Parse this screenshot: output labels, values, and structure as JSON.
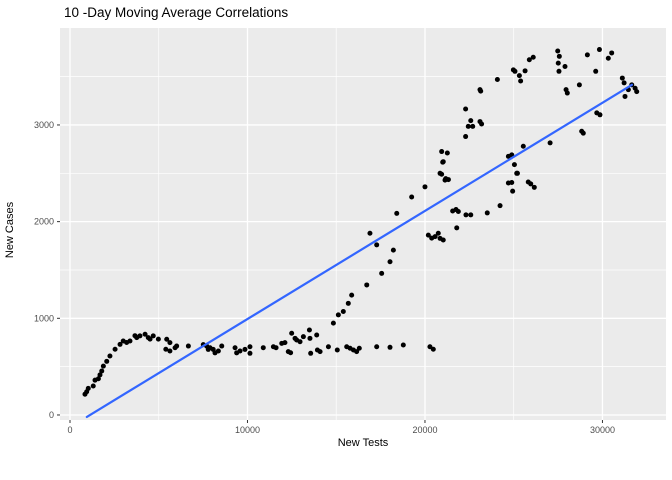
{
  "title": "10 -Day Moving Average Correlations",
  "chart_data": {
    "type": "scatter",
    "title": "10 -Day Moving Average Correlations",
    "xlabel": "New Tests",
    "ylabel": "New Cases",
    "xlim": [
      -563,
      33580
    ],
    "ylim": [
      -52,
      4003
    ],
    "x_ticks": [
      0,
      10000,
      20000,
      30000
    ],
    "x_minor_ticks": [
      5000,
      15000,
      25000
    ],
    "y_ticks": [
      0,
      1000,
      2000,
      3000
    ],
    "y_minor_ticks": [
      500,
      1500,
      2500,
      3500
    ],
    "grid": "on",
    "legend": "none",
    "panel_bg": "#EBEBEB",
    "grid_color": "#FFFFFF",
    "tick_color": "#333333",
    "tick_label_color": "#4D4D4D",
    "point_color": "#000000",
    "point_radius": 2.5,
    "trend_line": {
      "color": "#3366FF",
      "width": 2.2,
      "points": [
        [
          950,
          -20
        ],
        [
          31660,
          3415
        ]
      ]
    },
    "points": [
      [
        845,
        215
      ],
      [
        940,
        240
      ],
      [
        1030,
        275
      ],
      [
        1310,
        300
      ],
      [
        1410,
        360
      ],
      [
        1600,
        375
      ],
      [
        1690,
        415
      ],
      [
        1790,
        455
      ],
      [
        1880,
        505
      ],
      [
        2070,
        555
      ],
      [
        2250,
        610
      ],
      [
        2540,
        680
      ],
      [
        2820,
        730
      ],
      [
        3000,
        765
      ],
      [
        3190,
        750
      ],
      [
        3380,
        765
      ],
      [
        3660,
        820
      ],
      [
        3760,
        800
      ],
      [
        3940,
        818
      ],
      [
        4230,
        835
      ],
      [
        4410,
        800
      ],
      [
        4510,
        785
      ],
      [
        4690,
        818
      ],
      [
        4980,
        785
      ],
      [
        5400,
        680
      ],
      [
        5450,
        783
      ],
      [
        5630,
        748
      ],
      [
        5630,
        662
      ],
      [
        5920,
        695
      ],
      [
        6010,
        713
      ],
      [
        6670,
        713
      ],
      [
        7510,
        728
      ],
      [
        7700,
        713
      ],
      [
        7790,
        678
      ],
      [
        7890,
        695
      ],
      [
        8070,
        678
      ],
      [
        8170,
        643
      ],
      [
        8360,
        662
      ],
      [
        8550,
        713
      ],
      [
        9300,
        695
      ],
      [
        9390,
        643
      ],
      [
        9580,
        662
      ],
      [
        9860,
        678
      ],
      [
        10140,
        706
      ],
      [
        10140,
        638
      ],
      [
        10890,
        696
      ],
      [
        11460,
        706
      ],
      [
        11610,
        696
      ],
      [
        11930,
        741
      ],
      [
        12110,
        748
      ],
      [
        12300,
        655
      ],
      [
        12430,
        644
      ],
      [
        12490,
        845
      ],
      [
        12680,
        793
      ],
      [
        12770,
        776
      ],
      [
        12960,
        758
      ],
      [
        13150,
        810
      ],
      [
        13490,
        879
      ],
      [
        13520,
        793
      ],
      [
        13560,
        638
      ],
      [
        13900,
        827
      ],
      [
        13940,
        672
      ],
      [
        14090,
        655
      ],
      [
        14560,
        706
      ],
      [
        15060,
        672
      ],
      [
        15590,
        706
      ],
      [
        15780,
        690
      ],
      [
        15970,
        672
      ],
      [
        16150,
        655
      ],
      [
        16300,
        690
      ],
      [
        17280,
        706
      ],
      [
        18030,
        700
      ],
      [
        18780,
        724
      ],
      [
        20280,
        706
      ],
      [
        20470,
        680
      ],
      [
        14840,
        950
      ],
      [
        15120,
        1035
      ],
      [
        15400,
        1070
      ],
      [
        15680,
        1155
      ],
      [
        15870,
        1240
      ],
      [
        16720,
        1345
      ],
      [
        17560,
        1465
      ],
      [
        18030,
        1585
      ],
      [
        18220,
        1705
      ],
      [
        17280,
        1760
      ],
      [
        16900,
        1880
      ],
      [
        18410,
        2085
      ],
      [
        19250,
        2255
      ],
      [
        20000,
        2360
      ],
      [
        20190,
        1860
      ],
      [
        20380,
        1830
      ],
      [
        20570,
        1845
      ],
      [
        20750,
        1880
      ],
      [
        20850,
        1827
      ],
      [
        21030,
        1810
      ],
      [
        21790,
        1935
      ],
      [
        21560,
        2110
      ],
      [
        21750,
        2125
      ],
      [
        21880,
        2105
      ],
      [
        22310,
        2070
      ],
      [
        22580,
        2070
      ],
      [
        23510,
        2090
      ],
      [
        24230,
        2165
      ],
      [
        20850,
        2500
      ],
      [
        20940,
        2490
      ],
      [
        20940,
        2725
      ],
      [
        21030,
        2620
      ],
      [
        21130,
        2430
      ],
      [
        21170,
        2445
      ],
      [
        21320,
        2435
      ],
      [
        24700,
        2400
      ],
      [
        24890,
        2405
      ],
      [
        24940,
        2315
      ],
      [
        25820,
        2410
      ],
      [
        25960,
        2390
      ],
      [
        26160,
        2355
      ],
      [
        25210,
        2500
      ],
      [
        24080,
        3470
      ],
      [
        23140,
        3350
      ],
      [
        22290,
        3165
      ],
      [
        22580,
        3045
      ],
      [
        22440,
        2985
      ],
      [
        22690,
        2985
      ],
      [
        23190,
        3010
      ],
      [
        22290,
        2880
      ],
      [
        21260,
        2710
      ],
      [
        21000,
        2615
      ],
      [
        23100,
        3365
      ],
      [
        23100,
        3035
      ],
      [
        24700,
        2675
      ],
      [
        24890,
        2690
      ],
      [
        24980,
        3570
      ],
      [
        25070,
        3555
      ],
      [
        25320,
        3510
      ],
      [
        25390,
        3455
      ],
      [
        25640,
        3560
      ],
      [
        25040,
        2590
      ],
      [
        25170,
        2500
      ],
      [
        25880,
        3675
      ],
      [
        26100,
        3700
      ],
      [
        25540,
        2780
      ],
      [
        27050,
        2815
      ],
      [
        27480,
        3765
      ],
      [
        27570,
        3710
      ],
      [
        27510,
        3640
      ],
      [
        27550,
        3555
      ],
      [
        27890,
        3605
      ],
      [
        27950,
        3365
      ],
      [
        28020,
        3330
      ],
      [
        28700,
        3415
      ],
      [
        28830,
        2935
      ],
      [
        29150,
        3725
      ],
      [
        29620,
        3555
      ],
      [
        29830,
        3780
      ],
      [
        29680,
        3125
      ],
      [
        30330,
        3690
      ],
      [
        30520,
        3745
      ],
      [
        31120,
        3485
      ],
      [
        31220,
        3435
      ],
      [
        31460,
        3365
      ],
      [
        31650,
        3415
      ],
      [
        31840,
        3380
      ],
      [
        31930,
        3345
      ],
      [
        31270,
        3295
      ],
      [
        29860,
        3105
      ],
      [
        28920,
        2915
      ]
    ]
  }
}
